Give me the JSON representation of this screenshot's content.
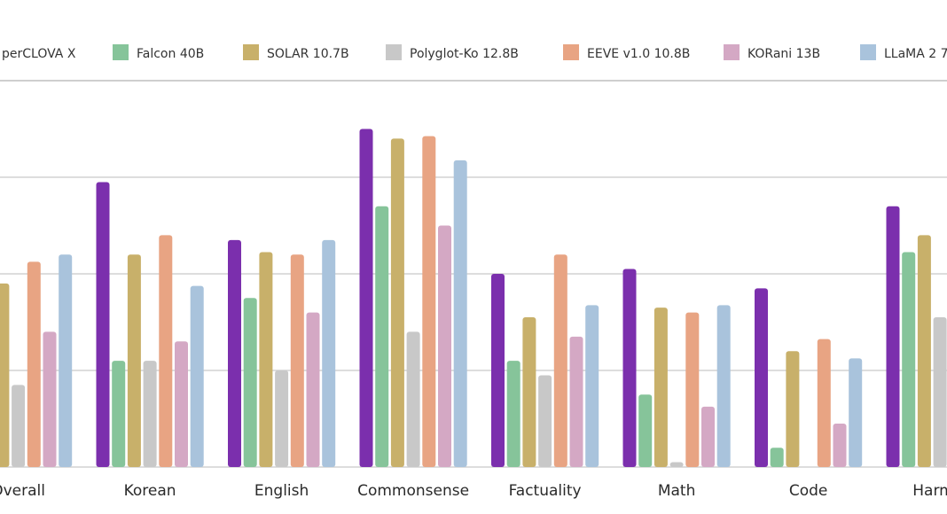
{
  "chart_data": {
    "type": "bar",
    "categories": [
      "Overall",
      "Korean",
      "English",
      "Commonsense",
      "Factuality",
      "Math",
      "Code",
      "Harmless"
    ],
    "category_labels": [
      "Overall",
      "Korean",
      "English",
      "Commonsense",
      "Factuality",
      "Math",
      "Code",
      "Harmle"
    ],
    "ylim": [
      0,
      80
    ],
    "grid": true,
    "legend_position": "top",
    "series": [
      {
        "name": "HyperCLOVA X",
        "legend_label": "perCLOVA X",
        "color": "#7b2fad",
        "values": [
          null,
          59,
          47,
          70,
          40,
          41,
          37,
          54
        ]
      },
      {
        "name": "Falcon 40B",
        "legend_label": "Falcon 40B",
        "color": "#86c49a",
        "values": [
          null,
          22,
          35,
          54,
          22,
          15,
          4,
          44.5
        ]
      },
      {
        "name": "SOLAR 10.7B",
        "legend_label": "SOLAR 10.7B",
        "color": "#c8b06a",
        "values": [
          38,
          44,
          44.5,
          68,
          31,
          33,
          24,
          48
        ]
      },
      {
        "name": "Polyglot-Ko 12.8B",
        "legend_label": "Polyglot-Ko 12.8B",
        "color": "#c8c8c8",
        "values": [
          17,
          22,
          20,
          28,
          19,
          1,
          null,
          31
        ]
      },
      {
        "name": "EEVE v1.0 10.8B",
        "legend_label": "EEVE v1.0 10.8B",
        "color": "#e8a483",
        "values": [
          42.5,
          48,
          44,
          68.5,
          44,
          32,
          26.5,
          null
        ]
      },
      {
        "name": "KORani 13B",
        "legend_label": "KORani 13B",
        "color": "#d4a8c4",
        "values": [
          28,
          26,
          32,
          50,
          27,
          12.5,
          9,
          null
        ]
      },
      {
        "name": "LLaMA 2",
        "legend_label": "LLaMA 2 7",
        "color": "#a9c3dc",
        "values": [
          44,
          37.5,
          47,
          63.5,
          33.5,
          33.5,
          22.5,
          null
        ]
      }
    ]
  }
}
